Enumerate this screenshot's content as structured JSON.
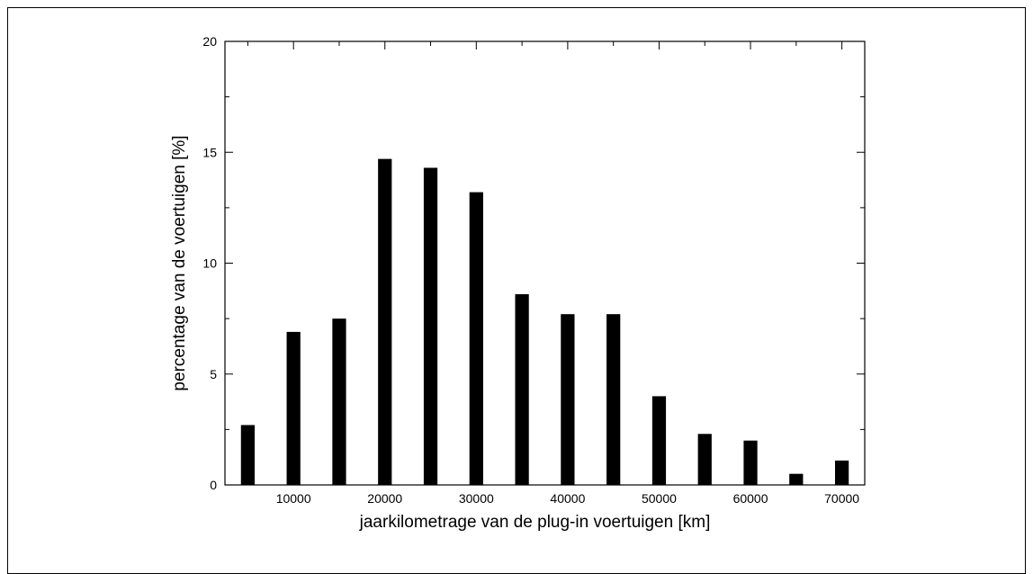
{
  "chart_data": {
    "type": "bar",
    "xlabel": "jaarkilometrage van de plug-in voertuigen [km]",
    "ylabel": "percentage van de voertuigen [%]",
    "xlim": [
      2500,
      72500
    ],
    "ylim": [
      0,
      20
    ],
    "x_ticks": [
      10000,
      20000,
      30000,
      40000,
      50000,
      60000,
      70000
    ],
    "x_tick_labels": [
      "10000",
      "20000",
      "30000",
      "40000",
      "50000",
      "60000",
      "70000"
    ],
    "y_ticks": [
      0,
      5,
      10,
      15,
      20
    ],
    "y_tick_labels": [
      "0",
      "5",
      "10",
      "15",
      "20"
    ],
    "bar_width": 1500,
    "bar_color": "#000000",
    "grid": false,
    "x": [
      5000,
      10000,
      15000,
      20000,
      25000,
      30000,
      35000,
      40000,
      45000,
      50000,
      55000,
      60000,
      65000,
      70000
    ],
    "values": [
      2.7,
      6.9,
      7.5,
      14.7,
      14.3,
      13.2,
      8.6,
      7.7,
      7.7,
      4.0,
      2.3,
      2.0,
      0.5,
      1.1
    ]
  }
}
